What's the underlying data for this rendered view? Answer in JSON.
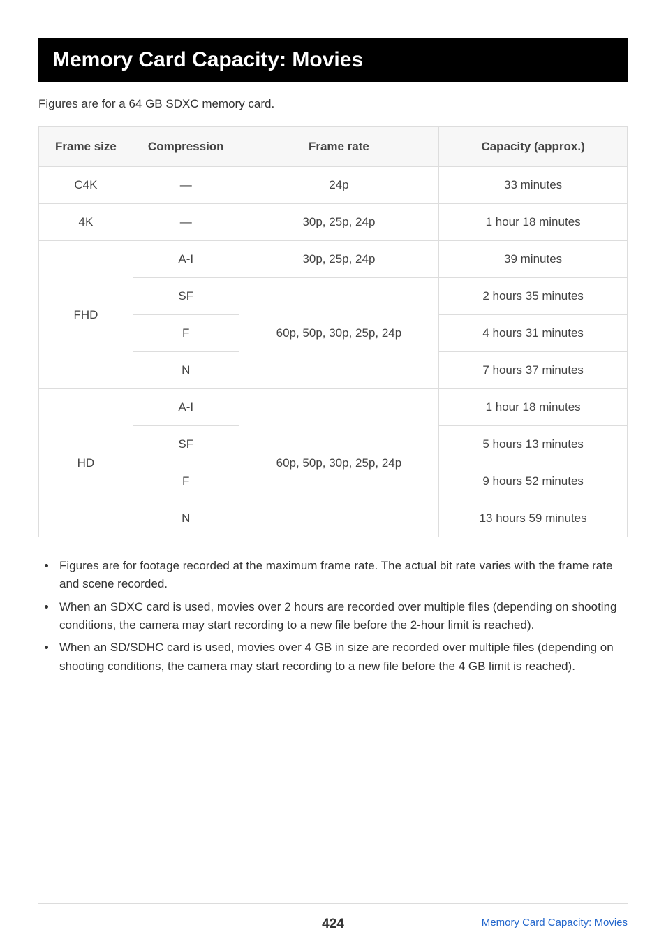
{
  "title": "Memory Card Capacity: Movies",
  "intro": "Figures are for a 64 GB SDXC memory card.",
  "table": {
    "headers": {
      "frame_size": "Frame size",
      "compression": "Compression",
      "frame_rate": "Frame rate",
      "capacity": "Capacity (approx.)"
    },
    "rows": {
      "c4k": {
        "frame_size": "C4K",
        "compression": "—",
        "frame_rate": "24p",
        "capacity": "33 minutes"
      },
      "4k": {
        "frame_size": "4K",
        "compression": "—",
        "frame_rate": "30p, 25p, 24p",
        "capacity": "1 hour 18 minutes"
      },
      "fhd": {
        "frame_size": "FHD",
        "ai": {
          "compression": "A-I",
          "frame_rate": "30p, 25p, 24p",
          "capacity": "39 minutes"
        },
        "sf": {
          "compression": "SF",
          "capacity": "2 hours 35 minutes"
        },
        "f_group_rate": "60p, 50p, 30p, 25p, 24p",
        "f": {
          "compression": "F",
          "capacity": "4 hours 31 minutes"
        },
        "n": {
          "compression": "N",
          "capacity": "7 hours 37 minutes"
        }
      },
      "hd": {
        "frame_size": "HD",
        "ai": {
          "compression": "A-I",
          "capacity": "1 hour 18 minutes"
        },
        "sf": {
          "compression": "SF",
          "capacity": "5 hours 13 minutes"
        },
        "group_rate": "60p, 50p, 30p, 25p, 24p",
        "f": {
          "compression": "F",
          "capacity": "9 hours 52 minutes"
        },
        "n": {
          "compression": "N",
          "capacity": "13 hours 59 minutes"
        }
      }
    }
  },
  "notes": {
    "n1": "Figures are for footage recorded at the maximum frame rate. The actual bit rate varies with the frame rate and scene recorded.",
    "n2": "When an SDXC card is used, movies over 2 hours are recorded over multiple files (depending on shooting conditions, the camera may start recording to a new file before the 2-hour limit is reached).",
    "n3": "When an SD/SDHC card is used, movies over 4 GB in size are recorded over multiple files (depending on shooting conditions, the camera may start recording to a new file before the 4 GB limit is reached)."
  },
  "footer": {
    "page": "424",
    "link": "Memory Card Capacity: Movies"
  },
  "styling": {
    "title_bg": "#000000",
    "title_color": "#ffffff",
    "header_bg": "#f7f7f7",
    "border_color": "#dddddd",
    "link_color": "#2266cc",
    "body_font_size_pt": 13,
    "title_font_size_pt": 23
  }
}
